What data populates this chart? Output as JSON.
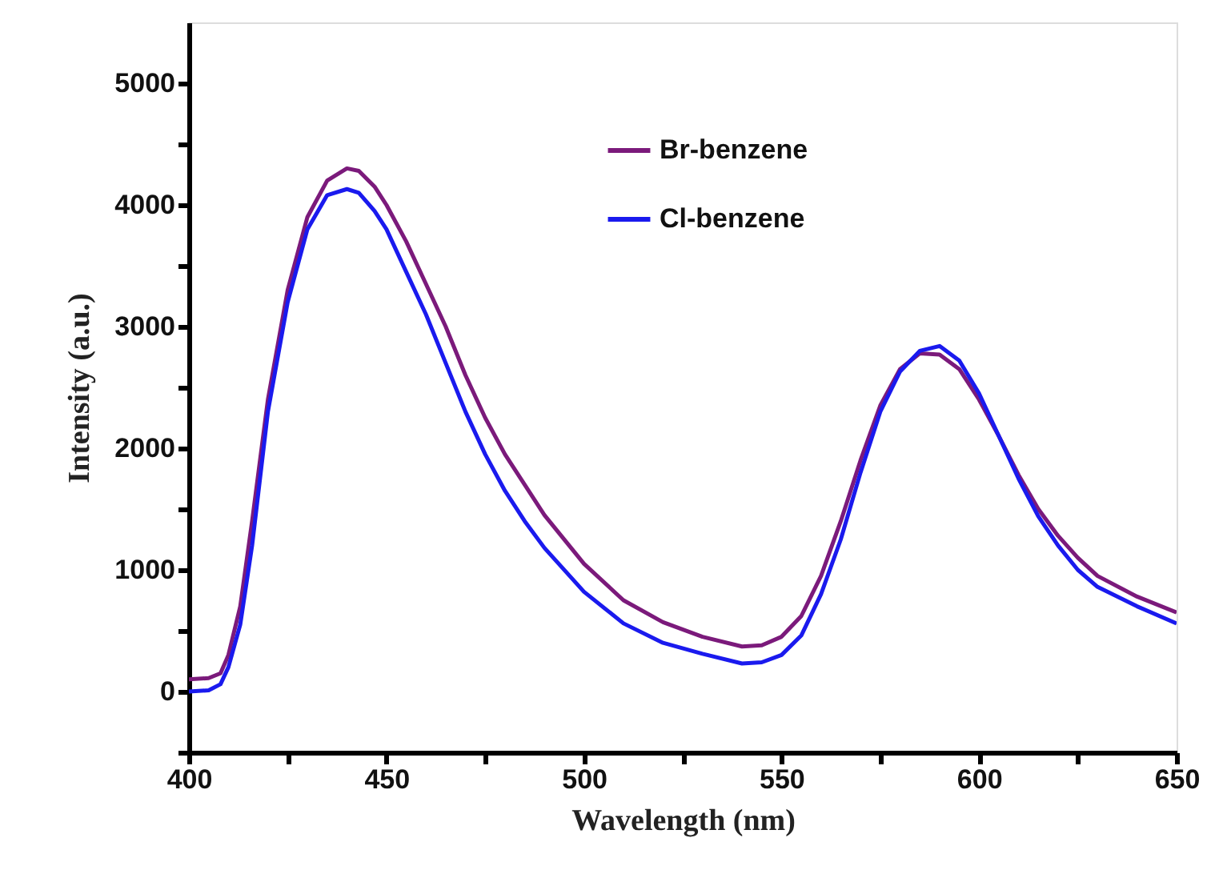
{
  "chart_data": {
    "type": "line",
    "xlabel": "Wavelength (nm)",
    "ylabel": "Intensity (a.u.)",
    "x": [
      400,
      405,
      408,
      410,
      413,
      416,
      420,
      425,
      430,
      435,
      440,
      443,
      447,
      450,
      455,
      460,
      465,
      470,
      475,
      480,
      485,
      490,
      500,
      510,
      520,
      530,
      540,
      545,
      550,
      555,
      560,
      565,
      570,
      575,
      580,
      585,
      590,
      595,
      600,
      605,
      610,
      615,
      620,
      625,
      630,
      640,
      650
    ],
    "series": [
      {
        "name": "Br-benzene",
        "color": "#7b1a7b",
        "values": [
          100,
          110,
          150,
          300,
          700,
          1400,
          2400,
          3300,
          3900,
          4200,
          4300,
          4280,
          4150,
          4000,
          3700,
          3350,
          3000,
          2600,
          2250,
          1950,
          1700,
          1450,
          1050,
          750,
          570,
          450,
          370,
          380,
          450,
          620,
          950,
          1400,
          1900,
          2350,
          2650,
          2780,
          2770,
          2650,
          2400,
          2100,
          1780,
          1500,
          1280,
          1100,
          950,
          780,
          650
        ]
      },
      {
        "name": "Cl-benzene",
        "color": "#1a1aee",
        "values": [
          0,
          10,
          60,
          200,
          550,
          1200,
          2300,
          3200,
          3800,
          4080,
          4130,
          4100,
          3950,
          3800,
          3450,
          3100,
          2700,
          2300,
          1950,
          1650,
          1400,
          1180,
          820,
          560,
          400,
          310,
          230,
          240,
          300,
          460,
          800,
          1250,
          1800,
          2300,
          2630,
          2800,
          2840,
          2720,
          2450,
          2100,
          1750,
          1440,
          1200,
          1000,
          860,
          700,
          560
        ]
      }
    ],
    "xlim": [
      400,
      650
    ],
    "xticks": [
      400,
      {
        "value": 425,
        "label": null
      },
      450,
      {
        "value": 475,
        "label": null
      },
      500,
      {
        "value": 525,
        "label": null
      },
      550,
      {
        "value": 575,
        "label": null
      },
      600,
      {
        "value": 625,
        "label": null
      },
      650
    ],
    "ylim": [
      -500,
      5500
    ],
    "yticks": [
      {
        "value": -500,
        "label": null
      },
      0,
      {
        "value": 500,
        "label": null
      },
      1000,
      {
        "value": 1500,
        "label": null
      },
      2000,
      {
        "value": 2500,
        "label": null
      },
      3000,
      {
        "value": 3500,
        "label": null
      },
      4000,
      {
        "value": 4500,
        "label": null
      },
      5000
    ],
    "legend": "top",
    "grid": false,
    "marker": "none",
    "line_style": "solid"
  }
}
